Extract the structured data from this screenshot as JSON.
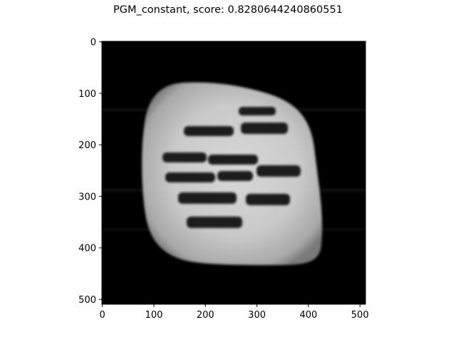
{
  "figure": {
    "title": "PGM_constant, score: 0.8280644240860551",
    "image_extent": {
      "x": [
        0,
        511
      ],
      "y": [
        0,
        511
      ]
    },
    "x_ticks": [
      "0",
      "100",
      "200",
      "300",
      "400",
      "500"
    ],
    "y_ticks": [
      "0",
      "100",
      "200",
      "300",
      "400",
      "500"
    ],
    "colormap": "gray",
    "background_color": "#000000"
  }
}
